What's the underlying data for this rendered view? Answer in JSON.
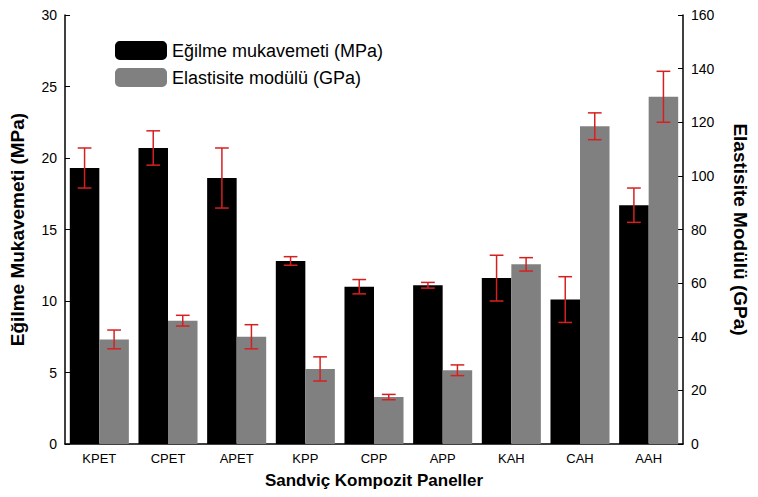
{
  "chart_data": {
    "type": "bar",
    "x_label": "Sandviç Kompozit Paneller",
    "y_label": "Eğilme Mukavemeti (MPa)",
    "y2_label": "Elastisite Modülü (GPa)",
    "categories": [
      "KPET",
      "CPET",
      "APET",
      "KPP",
      "CPP",
      "APP",
      "KAH",
      "CAH",
      "AAH"
    ],
    "series": [
      {
        "name": "Eğilme mukavemeti (MPa)",
        "color": "#000000",
        "axis": "y",
        "values": [
          19.3,
          20.7,
          18.6,
          12.8,
          11.0,
          11.1,
          11.6,
          10.1,
          16.7
        ],
        "errors": [
          1.4,
          1.2,
          2.1,
          0.3,
          0.5,
          0.2,
          1.6,
          1.6,
          1.2
        ]
      },
      {
        "name": "Elastisite modülü (GPa)",
        "color": "#808080",
        "axis": "y2",
        "values": [
          39,
          46,
          40,
          28,
          17.5,
          27.5,
          67,
          118.5,
          129.5
        ],
        "errors": [
          3.5,
          2,
          4.5,
          4.5,
          1,
          2,
          2.5,
          5,
          9.5
        ]
      }
    ],
    "ylim": [
      0,
      30
    ],
    "yticks": [
      0,
      5,
      10,
      15,
      20,
      25,
      30
    ],
    "y2lim": [
      0,
      160
    ],
    "y2ticks": [
      0,
      20,
      40,
      60,
      80,
      100,
      120,
      140,
      160
    ],
    "grid": false,
    "legend": "upper left"
  }
}
